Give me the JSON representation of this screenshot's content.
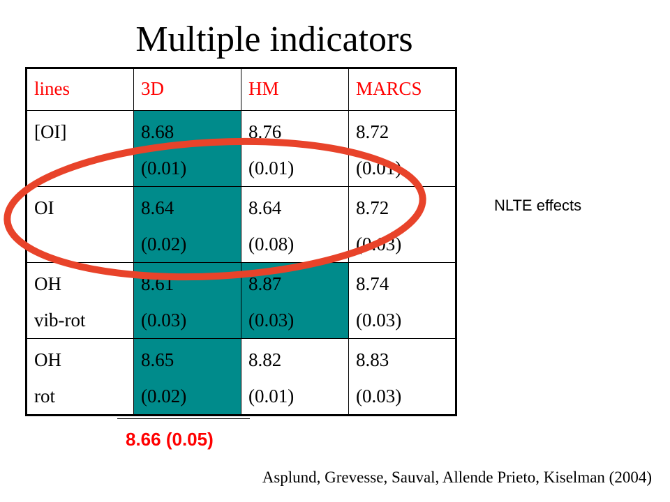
{
  "title": "Multiple indicators",
  "table": {
    "headers": [
      "lines",
      "3D",
      "HM",
      "MARCS"
    ],
    "rows": [
      {
        "label": [
          "[OI]"
        ],
        "d3": [
          "8.68",
          "(0.01)"
        ],
        "hm": [
          "8.76",
          "(0.01)"
        ],
        "marcs": [
          "8.72",
          "(0.01)"
        ]
      },
      {
        "label": [
          "OI"
        ],
        "d3": [
          "8.64",
          "(0.02)"
        ],
        "hm": [
          "8.64",
          "(0.08)"
        ],
        "marcs": [
          "8.72",
          "(0.03)"
        ]
      },
      {
        "label": [
          "OH",
          "vib-rot"
        ],
        "d3": [
          "8.61",
          "(0.03)"
        ],
        "hm": [
          "8.87",
          "(0.03)"
        ],
        "marcs": [
          "8.74",
          "(0.03)"
        ]
      },
      {
        "label": [
          "OH",
          "rot"
        ],
        "d3": [
          "8.65",
          "(0.02)"
        ],
        "hm": [
          "8.82",
          "(0.01)"
        ],
        "marcs": [
          "8.83",
          "(0.03)"
        ]
      }
    ]
  },
  "summary": "8.66 (0.05)",
  "annotation": "NLTE effects",
  "citation": "Asplund, Grevesse, Sauval, Allende Prieto, Kiselman (2004)",
  "colors": {
    "header_text": "#ff0000",
    "highlight_cell": "#008B8B",
    "ellipse": "#e8432a",
    "summary_text": "#ff0000"
  }
}
